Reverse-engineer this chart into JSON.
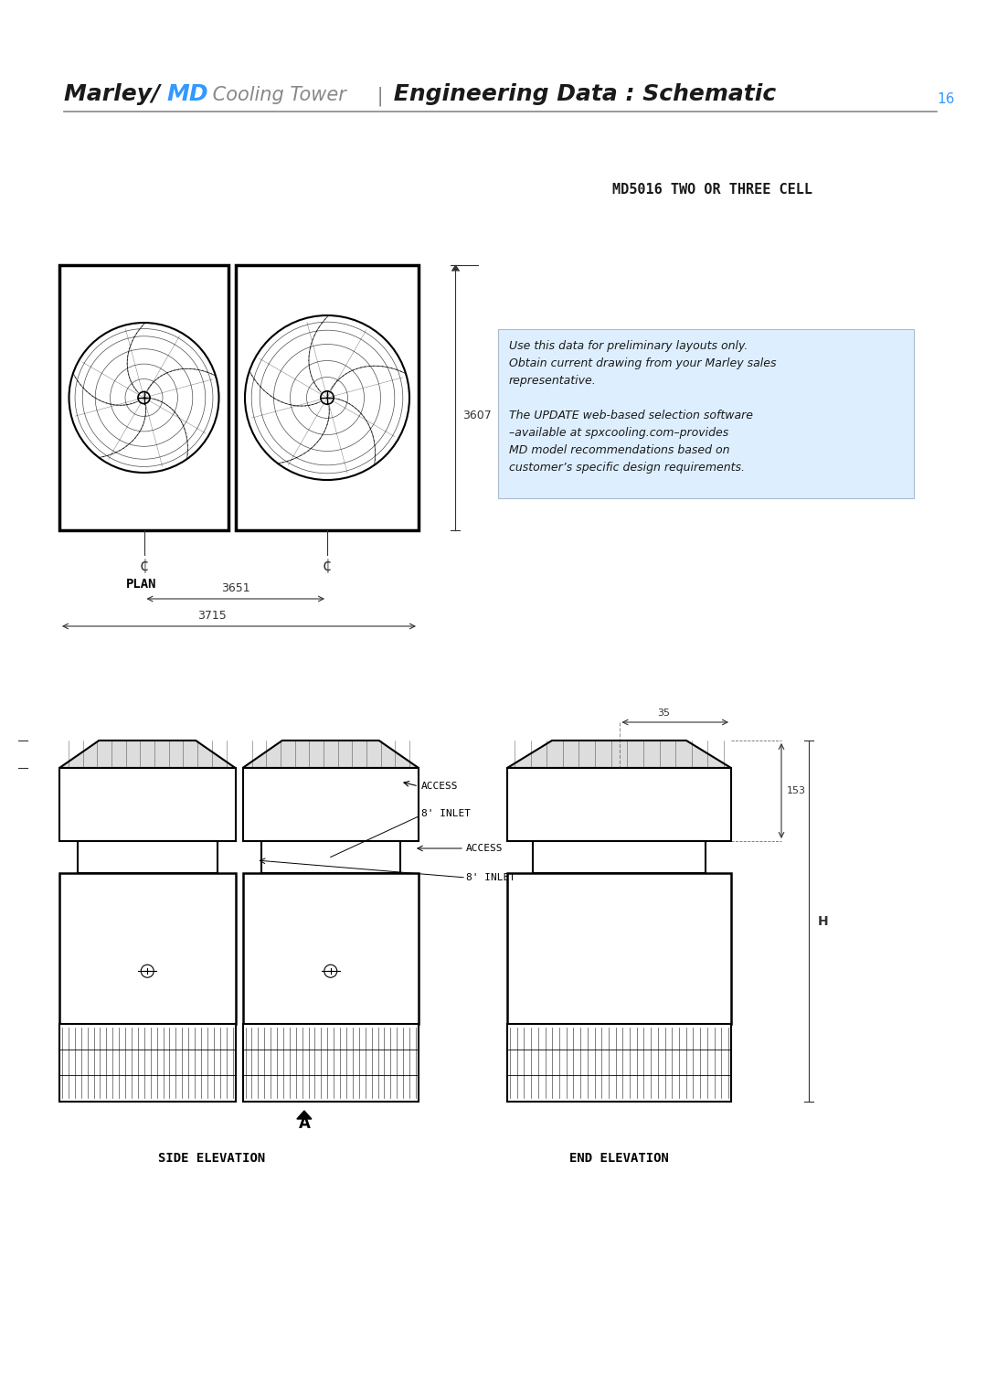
{
  "title_parts": [
    {
      "text": "Marley ",
      "style": "bold_italic",
      "color": "#1a1a1a"
    },
    {
      "text": "/ ",
      "style": "bold_italic",
      "color": "#1a1a1a"
    },
    {
      "text": "MD",
      "style": "bold_italic",
      "color": "#3399ff"
    },
    {
      "text": " Cooling Tower",
      "style": "italic",
      "color": "#888888"
    },
    {
      "text": " | ",
      "style": "italic",
      "color": "#888888"
    },
    {
      "text": "Engineering Data : Schematic",
      "style": "bold_italic",
      "color": "#1a1a1a"
    }
  ],
  "page_number": "16",
  "subtitle": "MD5016 TWO OR THREE CELL",
  "info_box_text": "Use this data for preliminary layouts only.\nObtain current drawing from your Marley sales\nrepresentative.\n\nThe UPDATE web-based selection software\n–available at spxcooling.com–provides\nMD model recommendations based on\ncustomer’s specific design requirements.",
  "info_box_bg": "#ddeeff",
  "dim_3607": "3607",
  "dim_3651": "3651",
  "dim_3715": "3715",
  "dim_35": "35",
  "dim_153": "153",
  "label_access": "ACCESS",
  "label_inlet": "8' INLET",
  "label_plan": "PLAN",
  "label_side": "SIDE ELEVATION",
  "label_end": "END ELEVATION",
  "label_H": "H",
  "label_A": "A",
  "bg_color": "#ffffff",
  "line_color": "#000000",
  "dim_color": "#333333",
  "text_color": "#1a1a1a"
}
